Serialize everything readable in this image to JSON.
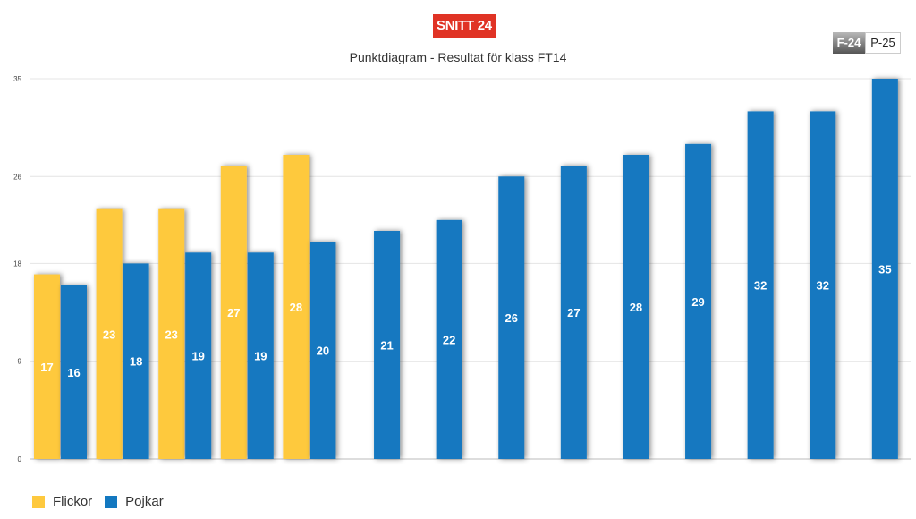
{
  "badge": "SNITT 24",
  "toggle": {
    "f_label": "F-24",
    "p_label": "P-25"
  },
  "colors": {
    "girls": "#fec93e",
    "boys": "#1378c0",
    "badge": "#e03325"
  },
  "chart_data": {
    "type": "bar",
    "title": "Punktdiagram - Resultat för klass FT14",
    "xlabel": "",
    "ylabel": "",
    "ylim": [
      0,
      35
    ],
    "yticks": [
      0,
      9,
      18,
      26,
      35
    ],
    "grid": true,
    "legend_position": "bottom-left",
    "series": [
      {
        "name": "Flickor",
        "color": "#fec93e",
        "values": [
          17,
          23,
          23,
          27,
          28,
          null,
          null,
          null,
          null,
          null,
          null,
          null,
          null,
          null
        ]
      },
      {
        "name": "Pojkar",
        "color": "#1378c0",
        "values": [
          16,
          18,
          19,
          19,
          20,
          21,
          22,
          26,
          27,
          28,
          29,
          32,
          32,
          35
        ]
      }
    ]
  }
}
